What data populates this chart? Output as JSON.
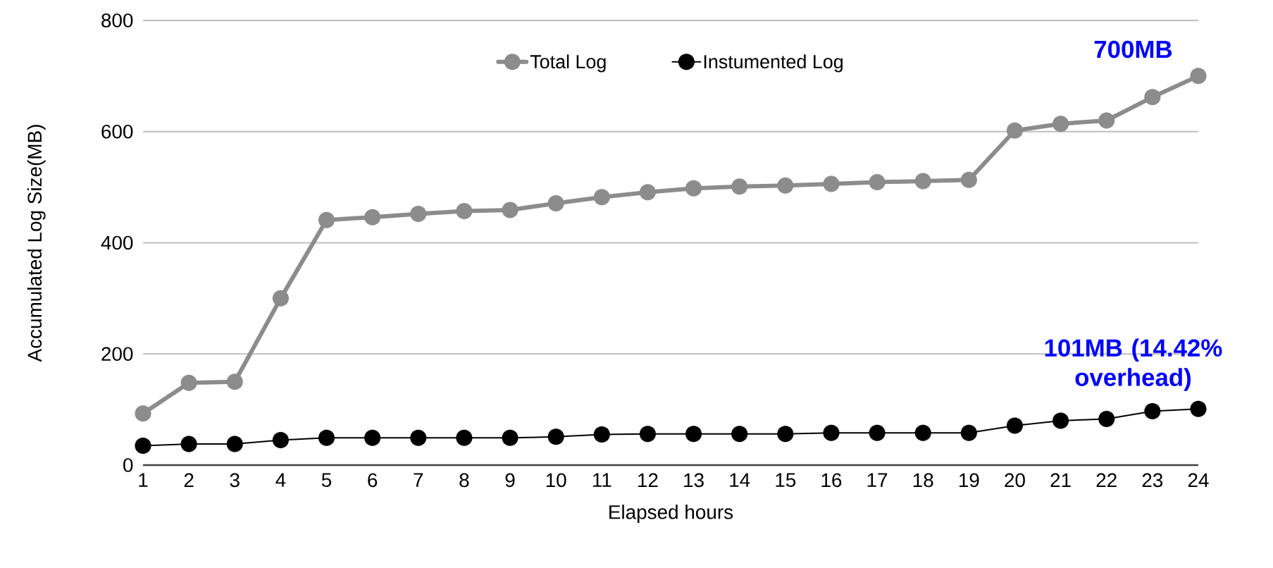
{
  "chart_data": {
    "type": "line",
    "xlabel": "Elapsed hours",
    "ylabel": "Accumulated Log Size(MB)",
    "x": [
      1,
      2,
      3,
      4,
      5,
      6,
      7,
      8,
      9,
      10,
      11,
      12,
      13,
      14,
      15,
      16,
      17,
      18,
      19,
      20,
      21,
      22,
      23,
      24
    ],
    "series": [
      {
        "name": "Total Log",
        "color": "#8c8c8c",
        "values": [
          93,
          148,
          150,
          300,
          441,
          446,
          452,
          457,
          459,
          471,
          482,
          491,
          498,
          501,
          503,
          506,
          509,
          511,
          513,
          602,
          614,
          620,
          662,
          700
        ]
      },
      {
        "name": "Instumented Log",
        "color": "#000000",
        "values": [
          35,
          38,
          38,
          45,
          49,
          49,
          49,
          49,
          49,
          51,
          55,
          56,
          56,
          56,
          56,
          58,
          58,
          58,
          58,
          71,
          80,
          83,
          97,
          101
        ]
      }
    ],
    "xlim": [
      1,
      24
    ],
    "xticks": [
      1,
      2,
      3,
      4,
      5,
      6,
      7,
      8,
      9,
      10,
      11,
      12,
      13,
      14,
      15,
      16,
      17,
      18,
      19,
      20,
      21,
      22,
      23,
      24
    ],
    "ylim": [
      0,
      800
    ],
    "yticks": [
      0,
      200,
      400,
      600,
      800
    ],
    "grid": "y",
    "legend": "top",
    "marker": "circle",
    "line_style": "solid",
    "annotations": [
      {
        "text": "700MB",
        "x": 24,
        "y": 700
      },
      {
        "text": "101MB (14.42% overhead)",
        "x": 24,
        "y": 101
      }
    ]
  }
}
